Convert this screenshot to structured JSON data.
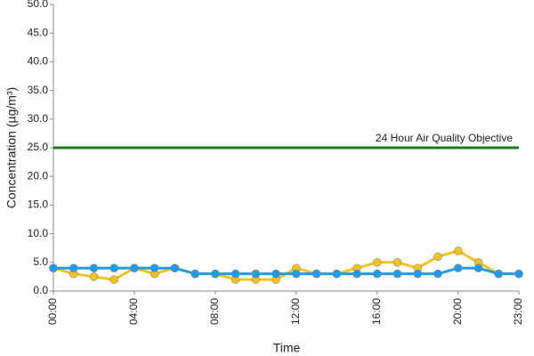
{
  "chart_data": {
    "type": "line",
    "x_label": "Time",
    "y_label": "Concentration (µg/m³)",
    "categories": [
      "00:00",
      null,
      null,
      null,
      "04:00",
      null,
      null,
      null,
      "08:00",
      null,
      null,
      null,
      "12:00",
      null,
      null,
      null,
      "16:00",
      null,
      null,
      null,
      "20:00",
      null,
      null,
      "23:00"
    ],
    "series": [
      {
        "color": "#f2c31f",
        "values": [
          4,
          3,
          2.5,
          2,
          4,
          3,
          4,
          3,
          3,
          2,
          2,
          2,
          4,
          3,
          3,
          4,
          5,
          5,
          4,
          6,
          7,
          5,
          3,
          3
        ]
      },
      {
        "color": "#1e9be9",
        "values": [
          4,
          4,
          4,
          4,
          4,
          4,
          4,
          3,
          3,
          3,
          3,
          3,
          3,
          3,
          3,
          3,
          3,
          3,
          3,
          3,
          4,
          4,
          3,
          3
        ]
      }
    ],
    "reference_line": {
      "value": 25,
      "label": "24 Hour Air Quality Objective",
      "color": "#1a7a1a"
    },
    "ylim": [
      0,
      50
    ],
    "yticks": [
      {
        "value": 0,
        "label": "0.0"
      },
      {
        "value": 5,
        "label": "5.0"
      },
      {
        "value": 10,
        "label": "10.0"
      },
      {
        "value": 15,
        "label": "15.0"
      },
      {
        "value": 20,
        "label": "20.0"
      },
      {
        "value": 25,
        "label": "25.0"
      },
      {
        "value": 30,
        "label": "30.0"
      },
      {
        "value": 35,
        "label": "35.0"
      },
      {
        "value": 40,
        "label": "40.0"
      },
      {
        "value": 45,
        "label": "45.0"
      },
      {
        "value": 50,
        "label": "50.0"
      }
    ],
    "grid": false
  }
}
